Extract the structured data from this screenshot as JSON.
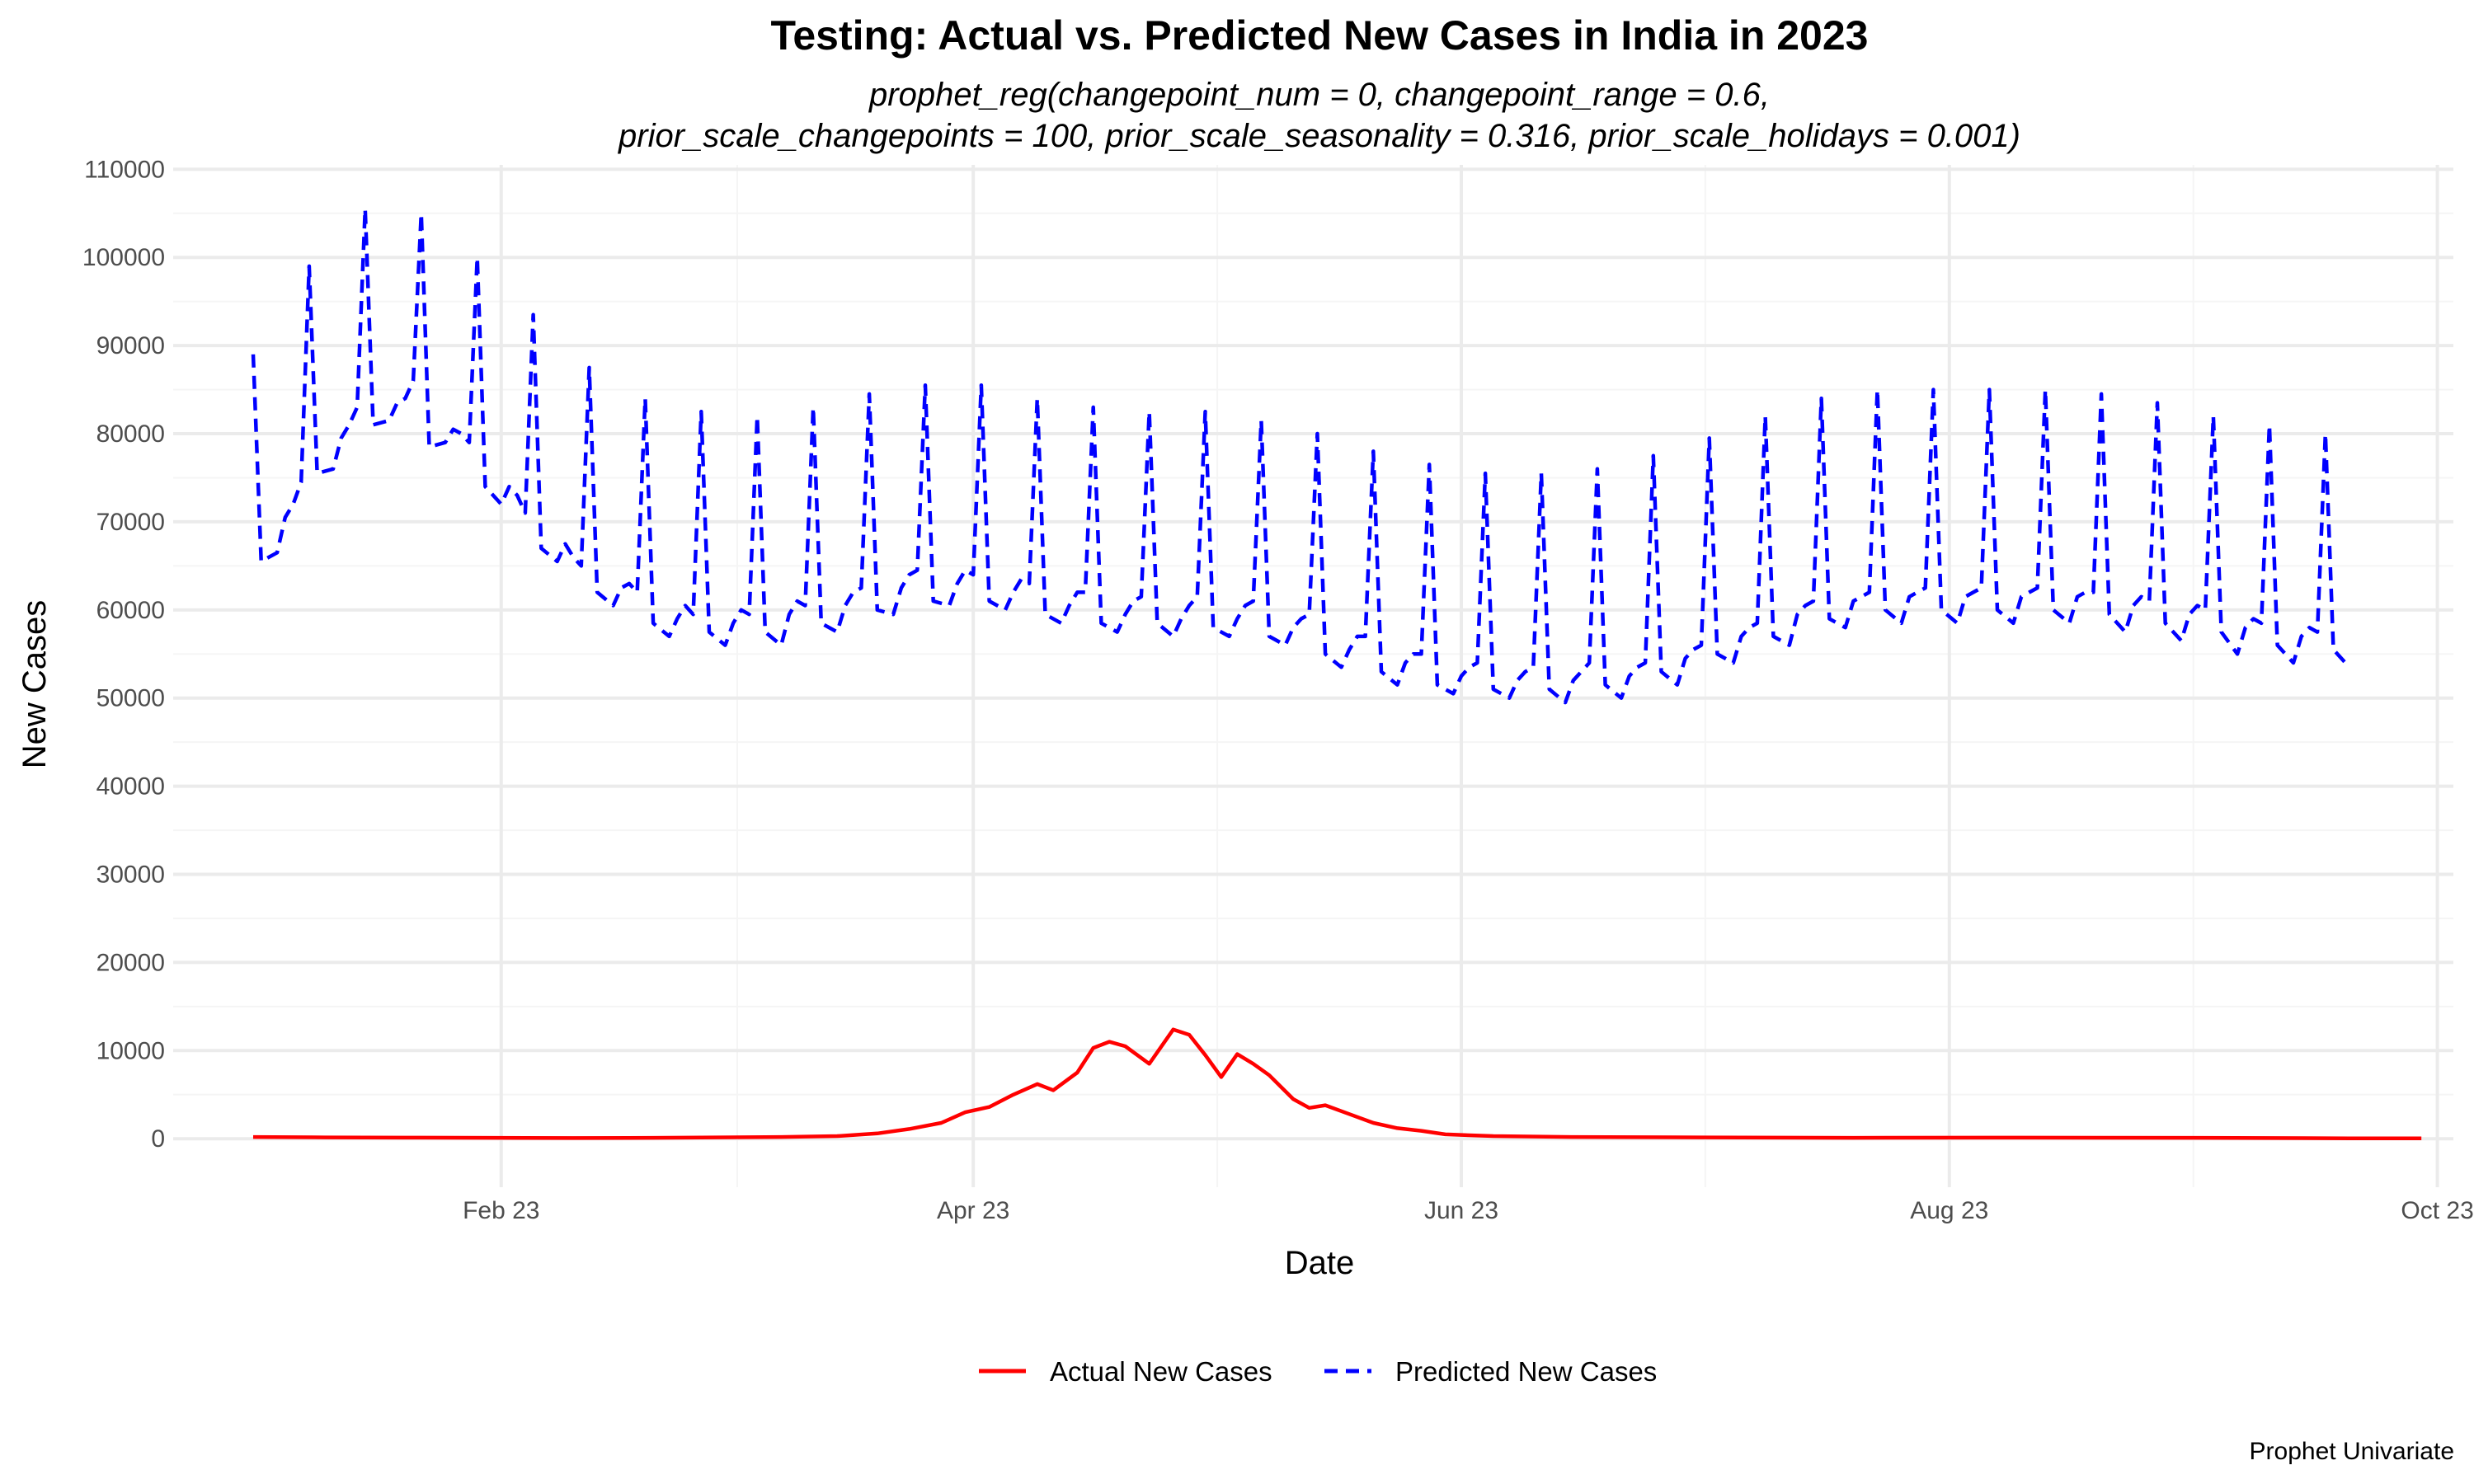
{
  "chart_data": {
    "type": "line",
    "title": "Testing: Actual vs. Predicted New Cases in India in 2023",
    "subtitle_lines": [
      "prophet_reg(changepoint_num = 0, changepoint_range = 0.6,",
      "prior_scale_changepoints = 100, prior_scale_seasonality = 0.316, prior_scale_holidays = 0.001)"
    ],
    "xlabel": "Date",
    "ylabel": "New Cases",
    "caption": "Prophet Univariate",
    "x_range": [
      "2022-12-22",
      "2023-10-03"
    ],
    "ylim": [
      -5500,
      110500
    ],
    "x_ticks": [
      {
        "date": "2023-02-01",
        "label": "Feb 23"
      },
      {
        "date": "2023-04-01",
        "label": "Apr 23"
      },
      {
        "date": "2023-06-01",
        "label": "Jun 23"
      },
      {
        "date": "2023-08-01",
        "label": "Aug 23"
      },
      {
        "date": "2023-10-01",
        "label": "Oct 23"
      }
    ],
    "y_ticks": [
      0,
      10000,
      20000,
      30000,
      40000,
      50000,
      60000,
      70000,
      80000,
      90000,
      100000,
      110000
    ],
    "grid": true,
    "legend_position": "bottom",
    "series": [
      {
        "name": "Actual New Cases",
        "color": "#ff0000",
        "dash": "solid",
        "points": [
          [
            "2023-01-01",
            200
          ],
          [
            "2023-01-10",
            150
          ],
          [
            "2023-01-20",
            120
          ],
          [
            "2023-01-31",
            100
          ],
          [
            "2023-02-10",
            80
          ],
          [
            "2023-02-20",
            100
          ],
          [
            "2023-02-28",
            150
          ],
          [
            "2023-03-08",
            200
          ],
          [
            "2023-03-15",
            300
          ],
          [
            "2023-03-20",
            600
          ],
          [
            "2023-03-24",
            1100
          ],
          [
            "2023-03-28",
            1800
          ],
          [
            "2023-03-31",
            3000
          ],
          [
            "2023-04-03",
            3600
          ],
          [
            "2023-04-06",
            5000
          ],
          [
            "2023-04-09",
            6200
          ],
          [
            "2023-04-11",
            5500
          ],
          [
            "2023-04-14",
            7500
          ],
          [
            "2023-04-16",
            10300
          ],
          [
            "2023-04-18",
            11000
          ],
          [
            "2023-04-20",
            10500
          ],
          [
            "2023-04-23",
            8500
          ],
          [
            "2023-04-26",
            12400
          ],
          [
            "2023-04-28",
            11800
          ],
          [
            "2023-04-30",
            9500
          ],
          [
            "2023-05-02",
            7000
          ],
          [
            "2023-05-04",
            9600
          ],
          [
            "2023-05-06",
            8500
          ],
          [
            "2023-05-08",
            7200
          ],
          [
            "2023-05-11",
            4500
          ],
          [
            "2023-05-13",
            3500
          ],
          [
            "2023-05-15",
            3800
          ],
          [
            "2023-05-18",
            2800
          ],
          [
            "2023-05-21",
            1800
          ],
          [
            "2023-05-24",
            1200
          ],
          [
            "2023-05-27",
            900
          ],
          [
            "2023-05-30",
            500
          ],
          [
            "2023-06-05",
            300
          ],
          [
            "2023-06-15",
            200
          ],
          [
            "2023-07-01",
            150
          ],
          [
            "2023-07-20",
            100
          ],
          [
            "2023-08-10",
            120
          ],
          [
            "2023-09-01",
            100
          ],
          [
            "2023-09-20",
            50
          ],
          [
            "2023-09-29",
            50
          ]
        ]
      },
      {
        "name": "Predicted New Cases",
        "color": "#0000ff",
        "dash": "dashed",
        "points": [
          [
            "2023-01-01",
            89000
          ],
          [
            "2023-01-02",
            65500
          ],
          [
            "2023-01-04",
            66500
          ],
          [
            "2023-01-05",
            70500
          ],
          [
            "2023-01-06",
            72000
          ],
          [
            "2023-01-07",
            74500
          ],
          [
            "2023-01-08",
            99000
          ],
          [
            "2023-01-09",
            75500
          ],
          [
            "2023-01-11",
            76000
          ],
          [
            "2023-01-12",
            79500
          ],
          [
            "2023-01-13",
            81000
          ],
          [
            "2023-01-14",
            83000
          ],
          [
            "2023-01-15",
            105500
          ],
          [
            "2023-01-16",
            81000
          ],
          [
            "2023-01-18",
            81500
          ],
          [
            "2023-01-19",
            83500
          ],
          [
            "2023-01-20",
            84000
          ],
          [
            "2023-01-21",
            86000
          ],
          [
            "2023-01-22",
            105000
          ],
          [
            "2023-01-23",
            78500
          ],
          [
            "2023-01-25",
            79000
          ],
          [
            "2023-01-26",
            80500
          ],
          [
            "2023-01-27",
            80000
          ],
          [
            "2023-01-28",
            79000
          ],
          [
            "2023-01-29",
            100000
          ],
          [
            "2023-01-30",
            74000
          ],
          [
            "2023-02-01",
            72000
          ],
          [
            "2023-02-02",
            74000
          ],
          [
            "2023-02-03",
            73000
          ],
          [
            "2023-02-04",
            71000
          ],
          [
            "2023-02-05",
            93500
          ],
          [
            "2023-02-06",
            67000
          ],
          [
            "2023-02-08",
            65500
          ],
          [
            "2023-02-09",
            67500
          ],
          [
            "2023-02-10",
            66000
          ],
          [
            "2023-02-11",
            65000
          ],
          [
            "2023-02-12",
            87500
          ],
          [
            "2023-02-13",
            62000
          ],
          [
            "2023-02-15",
            60500
          ],
          [
            "2023-02-16",
            62500
          ],
          [
            "2023-02-17",
            63000
          ],
          [
            "2023-02-18",
            62000
          ],
          [
            "2023-02-19",
            84000
          ],
          [
            "2023-02-20",
            58500
          ],
          [
            "2023-02-22",
            57000
          ],
          [
            "2023-02-23",
            59000
          ],
          [
            "2023-02-24",
            60500
          ],
          [
            "2023-02-25",
            59500
          ],
          [
            "2023-02-26",
            82500
          ],
          [
            "2023-02-27",
            57500
          ],
          [
            "2023-03-01",
            56000
          ],
          [
            "2023-03-02",
            58500
          ],
          [
            "2023-03-03",
            60000
          ],
          [
            "2023-03-04",
            59500
          ],
          [
            "2023-03-05",
            82000
          ],
          [
            "2023-03-06",
            57500
          ],
          [
            "2023-03-08",
            56000
          ],
          [
            "2023-03-09",
            59500
          ],
          [
            "2023-03-10",
            61000
          ],
          [
            "2023-03-11",
            60500
          ],
          [
            "2023-03-12",
            83000
          ],
          [
            "2023-03-13",
            58500
          ],
          [
            "2023-03-15",
            57500
          ],
          [
            "2023-03-16",
            60500
          ],
          [
            "2023-03-17",
            62000
          ],
          [
            "2023-03-18",
            62500
          ],
          [
            "2023-03-19",
            84500
          ],
          [
            "2023-03-20",
            60000
          ],
          [
            "2023-03-22",
            59500
          ],
          [
            "2023-03-23",
            62500
          ],
          [
            "2023-03-24",
            64000
          ],
          [
            "2023-03-25",
            64500
          ],
          [
            "2023-03-26",
            85500
          ],
          [
            "2023-03-27",
            61000
          ],
          [
            "2023-03-29",
            60500
          ],
          [
            "2023-03-30",
            63000
          ],
          [
            "2023-03-31",
            64500
          ],
          [
            "2023-04-01",
            64000
          ],
          [
            "2023-04-02",
            85500
          ],
          [
            "2023-04-03",
            61000
          ],
          [
            "2023-04-05",
            60000
          ],
          [
            "2023-04-06",
            62000
          ],
          [
            "2023-04-07",
            63500
          ],
          [
            "2023-04-08",
            63000
          ],
          [
            "2023-04-09",
            84000
          ],
          [
            "2023-04-10",
            59500
          ],
          [
            "2023-04-12",
            58500
          ],
          [
            "2023-04-13",
            60500
          ],
          [
            "2023-04-14",
            62000
          ],
          [
            "2023-04-15",
            62000
          ],
          [
            "2023-04-16",
            83000
          ],
          [
            "2023-04-17",
            58500
          ],
          [
            "2023-04-19",
            57500
          ],
          [
            "2023-04-20",
            59500
          ],
          [
            "2023-04-21",
            61000
          ],
          [
            "2023-04-22",
            61500
          ],
          [
            "2023-04-23",
            82500
          ],
          [
            "2023-04-24",
            58500
          ],
          [
            "2023-04-26",
            57000
          ],
          [
            "2023-04-27",
            59000
          ],
          [
            "2023-04-28",
            60500
          ],
          [
            "2023-04-29",
            61500
          ],
          [
            "2023-04-30",
            82500
          ],
          [
            "2023-05-01",
            58000
          ],
          [
            "2023-05-03",
            57000
          ],
          [
            "2023-05-04",
            59000
          ],
          [
            "2023-05-05",
            60500
          ],
          [
            "2023-05-06",
            61000
          ],
          [
            "2023-05-07",
            81500
          ],
          [
            "2023-05-08",
            57000
          ],
          [
            "2023-05-10",
            56000
          ],
          [
            "2023-05-11",
            58000
          ],
          [
            "2023-05-12",
            59000
          ],
          [
            "2023-05-13",
            59500
          ],
          [
            "2023-05-14",
            80000
          ],
          [
            "2023-05-15",
            55000
          ],
          [
            "2023-05-17",
            53500
          ],
          [
            "2023-05-18",
            55500
          ],
          [
            "2023-05-19",
            57000
          ],
          [
            "2023-05-20",
            57000
          ],
          [
            "2023-05-21",
            78000
          ],
          [
            "2023-05-22",
            53000
          ],
          [
            "2023-05-24",
            51500
          ],
          [
            "2023-05-25",
            54000
          ],
          [
            "2023-05-26",
            55000
          ],
          [
            "2023-05-27",
            55000
          ],
          [
            "2023-05-28",
            76500
          ],
          [
            "2023-05-29",
            51500
          ],
          [
            "2023-05-31",
            50500
          ],
          [
            "2023-06-01",
            52500
          ],
          [
            "2023-06-02",
            53500
          ],
          [
            "2023-06-03",
            54000
          ],
          [
            "2023-06-04",
            75500
          ],
          [
            "2023-06-05",
            51000
          ],
          [
            "2023-06-07",
            50000
          ],
          [
            "2023-06-08",
            52000
          ],
          [
            "2023-06-09",
            53000
          ],
          [
            "2023-06-10",
            53500
          ],
          [
            "2023-06-11",
            75500
          ],
          [
            "2023-06-12",
            51000
          ],
          [
            "2023-06-14",
            49500
          ],
          [
            "2023-06-15",
            52000
          ],
          [
            "2023-06-16",
            53000
          ],
          [
            "2023-06-17",
            54000
          ],
          [
            "2023-06-18",
            76000
          ],
          [
            "2023-06-19",
            51500
          ],
          [
            "2023-06-21",
            50000
          ],
          [
            "2023-06-22",
            52500
          ],
          [
            "2023-06-23",
            53500
          ],
          [
            "2023-06-24",
            54000
          ],
          [
            "2023-06-25",
            77500
          ],
          [
            "2023-06-26",
            53000
          ],
          [
            "2023-06-28",
            51500
          ],
          [
            "2023-06-29",
            54500
          ],
          [
            "2023-06-30",
            55500
          ],
          [
            "2023-07-01",
            56000
          ],
          [
            "2023-07-02",
            79500
          ],
          [
            "2023-07-03",
            55000
          ],
          [
            "2023-07-05",
            54000
          ],
          [
            "2023-07-06",
            57000
          ],
          [
            "2023-07-07",
            58000
          ],
          [
            "2023-07-08",
            58500
          ],
          [
            "2023-07-09",
            82000
          ],
          [
            "2023-07-10",
            57000
          ],
          [
            "2023-07-12",
            56000
          ],
          [
            "2023-07-13",
            59500
          ],
          [
            "2023-07-14",
            60500
          ],
          [
            "2023-07-15",
            61000
          ],
          [
            "2023-07-16",
            84000
          ],
          [
            "2023-07-17",
            59000
          ],
          [
            "2023-07-19",
            58000
          ],
          [
            "2023-07-20",
            61000
          ],
          [
            "2023-07-21",
            61500
          ],
          [
            "2023-07-22",
            62000
          ],
          [
            "2023-07-23",
            85000
          ],
          [
            "2023-07-24",
            60000
          ],
          [
            "2023-07-26",
            58500
          ],
          [
            "2023-07-27",
            61500
          ],
          [
            "2023-07-28",
            62000
          ],
          [
            "2023-07-29",
            62500
          ],
          [
            "2023-07-30",
            85000
          ],
          [
            "2023-07-31",
            60000
          ],
          [
            "2023-08-02",
            58500
          ],
          [
            "2023-08-03",
            61500
          ],
          [
            "2023-08-04",
            62000
          ],
          [
            "2023-08-05",
            62500
          ],
          [
            "2023-08-06",
            85000
          ],
          [
            "2023-08-07",
            60000
          ],
          [
            "2023-08-09",
            58500
          ],
          [
            "2023-08-10",
            61500
          ],
          [
            "2023-08-11",
            62000
          ],
          [
            "2023-08-12",
            62500
          ],
          [
            "2023-08-13",
            85000
          ],
          [
            "2023-08-14",
            60000
          ],
          [
            "2023-08-16",
            58500
          ],
          [
            "2023-08-17",
            61500
          ],
          [
            "2023-08-18",
            62000
          ],
          [
            "2023-08-19",
            62000
          ],
          [
            "2023-08-20",
            84500
          ],
          [
            "2023-08-21",
            59500
          ],
          [
            "2023-08-23",
            57500
          ],
          [
            "2023-08-24",
            60500
          ],
          [
            "2023-08-25",
            61500
          ],
          [
            "2023-08-26",
            61000
          ],
          [
            "2023-08-27",
            83500
          ],
          [
            "2023-08-28",
            58500
          ],
          [
            "2023-08-30",
            56500
          ],
          [
            "2023-08-31",
            59500
          ],
          [
            "2023-09-01",
            60500
          ],
          [
            "2023-09-02",
            60000
          ],
          [
            "2023-09-03",
            82000
          ],
          [
            "2023-09-04",
            57500
          ],
          [
            "2023-09-06",
            55000
          ],
          [
            "2023-09-07",
            58000
          ],
          [
            "2023-09-08",
            59000
          ],
          [
            "2023-09-09",
            58500
          ],
          [
            "2023-09-10",
            81000
          ],
          [
            "2023-09-11",
            56000
          ],
          [
            "2023-09-13",
            54000
          ],
          [
            "2023-09-14",
            57000
          ],
          [
            "2023-09-15",
            58000
          ],
          [
            "2023-09-16",
            57500
          ],
          [
            "2023-09-17",
            80000
          ],
          [
            "2023-09-18",
            55500
          ],
          [
            "2023-09-20",
            53500
          ]
        ]
      }
    ]
  }
}
